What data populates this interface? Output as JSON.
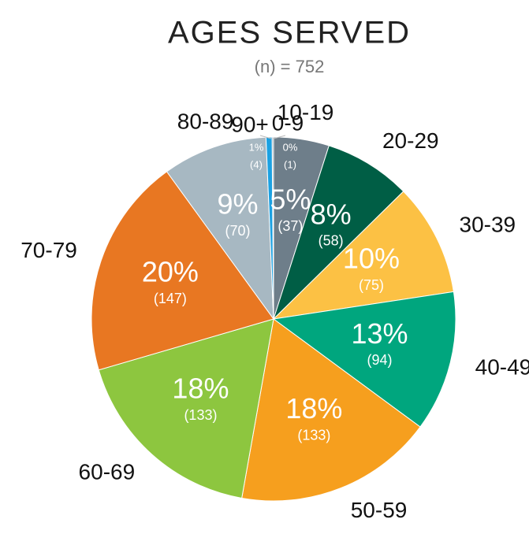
{
  "chart_data": {
    "type": "pie",
    "title": "AGES SERVED",
    "subtitle": "(n) = 752",
    "categories": [
      "0-9",
      "10-19",
      "20-29",
      "30-39",
      "40-49",
      "50-59",
      "60-69",
      "70-79",
      "80-89",
      "90+"
    ],
    "values": [
      1,
      37,
      58,
      75,
      94,
      133,
      133,
      147,
      70,
      4
    ],
    "value_labels": [
      "(1)",
      "(37)",
      "(58)",
      "(75)",
      "(94)",
      "(133)",
      "(133)",
      "(147)",
      "(70)",
      "(4)"
    ],
    "percent_labels": [
      "0%",
      "5%",
      "8%",
      "10%",
      "13%",
      "18%",
      "18%",
      "20%",
      "9%",
      "1%"
    ],
    "colors": [
      "#8fa3b0",
      "#6e7e8a",
      "#005e45",
      "#fcc144",
      "#00a67e",
      "#f69f1e",
      "#8dc63f",
      "#e87722",
      "#a7b8c2",
      "#1ba1e2"
    ]
  }
}
